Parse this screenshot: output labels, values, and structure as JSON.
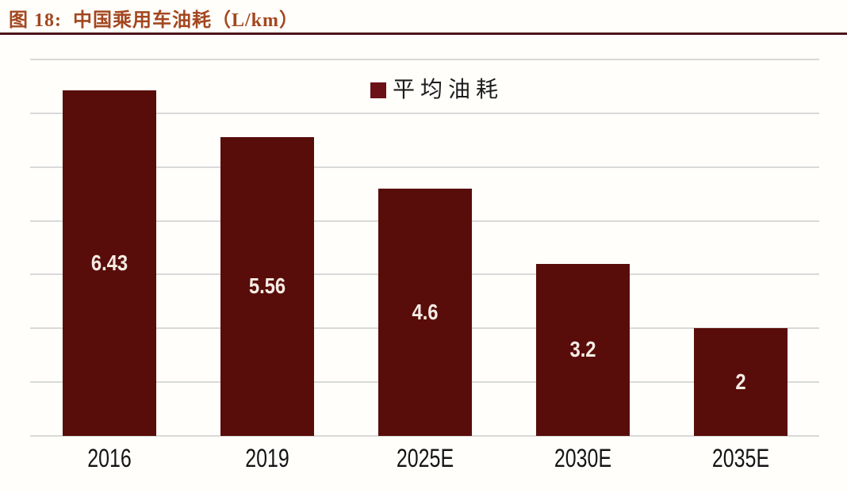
{
  "figure": {
    "title": "图 18:  中国乘用车油耗（L/km）",
    "title_color": "#a3471f",
    "divider_color": "#4d121a"
  },
  "legend": {
    "label": "平均油耗",
    "swatch_color": "#6b1117"
  },
  "chart_data": {
    "type": "bar",
    "title": "中国乘用车油耗（L/km）",
    "categories": [
      "2016",
      "2019",
      "2025E",
      "2030E",
      "2035E"
    ],
    "series": [
      {
        "name": "平均油耗",
        "values": [
          6.43,
          5.56,
          4.6,
          3.2,
          2
        ]
      }
    ],
    "value_labels": [
      "6.43",
      "5.56",
      "4.6",
      "3.2",
      "2"
    ],
    "xlabel": "",
    "ylabel": "",
    "ylim": [
      0,
      7
    ],
    "gridline_step": 1,
    "grid": true,
    "y_tick_labels_visible": false,
    "legend_position": "top-center",
    "bar_color": "#580d0b",
    "value_label_color": "#f6ece4",
    "gridline_color": "#d9d9d9",
    "x_label_color": "#141414"
  }
}
